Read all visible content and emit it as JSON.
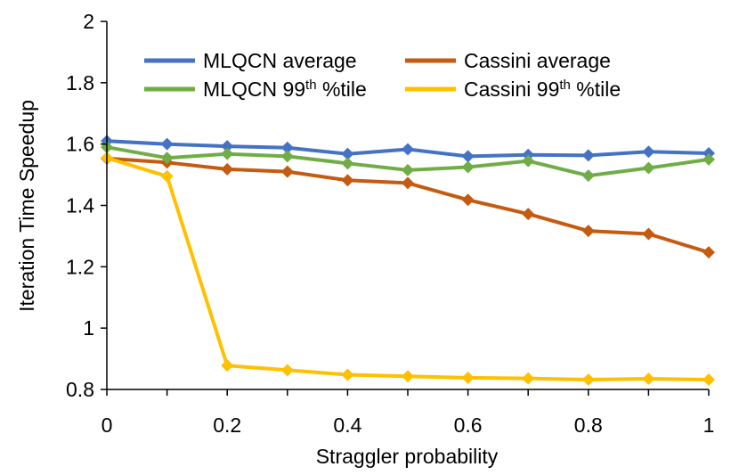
{
  "chart_data": {
    "type": "line",
    "title": "",
    "xlabel": "Straggler probability",
    "ylabel": "Iteration Time Speedup",
    "xlim": [
      0,
      1
    ],
    "ylim": [
      0.8,
      2
    ],
    "x": [
      0,
      0.1,
      0.2,
      0.3,
      0.4,
      0.5,
      0.6,
      0.7,
      0.8,
      0.9,
      1
    ],
    "x_tick_labels": [
      "0",
      "0.2",
      "0.4",
      "0.6",
      "0.8",
      "1"
    ],
    "y_tick_labels": [
      "0.8",
      "1",
      "1.2",
      "1.4",
      "1.6",
      "1.8",
      "2"
    ],
    "grid": false,
    "legend_position": "top",
    "series": [
      {
        "name": "MLQCN average",
        "label_main": "MLQCN average",
        "label_sup": "",
        "label_tail": "",
        "color": "#4472C4",
        "values": [
          1.61,
          1.6,
          1.593,
          1.588,
          1.568,
          1.583,
          1.56,
          1.565,
          1.563,
          1.575,
          1.57
        ]
      },
      {
        "name": "Cassini average",
        "label_main": "Cassini average",
        "label_sup": "",
        "label_tail": "",
        "color": "#C55A11",
        "values": [
          1.553,
          1.54,
          1.518,
          1.51,
          1.482,
          1.473,
          1.418,
          1.372,
          1.317,
          1.307,
          1.247
        ]
      },
      {
        "name": "MLQCN 99th %tile",
        "label_main": "MLQCN 99",
        "label_sup": "th",
        "label_tail": " %tile",
        "color": "#70AD47",
        "values": [
          1.59,
          1.555,
          1.568,
          1.56,
          1.537,
          1.515,
          1.525,
          1.545,
          1.497,
          1.522,
          1.55
        ]
      },
      {
        "name": "Cassini 99th %tile",
        "label_main": "Cassini 99",
        "label_sup": "th",
        "label_tail": " %tile",
        "color": "#FFC000",
        "values": [
          1.555,
          1.495,
          0.878,
          0.863,
          0.848,
          0.843,
          0.838,
          0.836,
          0.832,
          0.835,
          0.832
        ]
      }
    ]
  }
}
